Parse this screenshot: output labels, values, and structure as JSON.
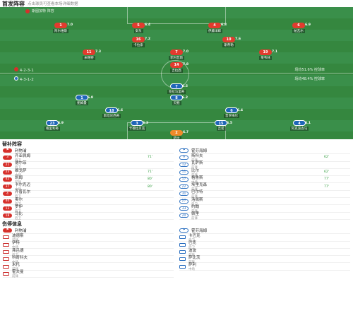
{
  "header": {
    "title": "首发阵容",
    "subtitle": "点击球员可查看本场详细数据"
  },
  "home": {
    "team_label": "斯图加特 阵容",
    "coach": "",
    "formation": "4-2-3-1",
    "color": "#d6302b",
    "stat": "场均51.6% 控球率",
    "players": [
      {
        "num": "1",
        "name": "阿尔维斯",
        "rating": "7.0"
      },
      {
        "num": "5",
        "name": "安东",
        "rating": "6.4"
      },
      {
        "num": "4",
        "name": "伊藤洋辉",
        "rating": "6.8"
      },
      {
        "num": "6",
        "name": "帕瓦尔",
        "rating": "6.9"
      },
      {
        "num": "16",
        "name": "卡拉索",
        "rating": "7.2"
      },
      {
        "num": "10",
        "name": "斯蒂勒",
        "rating": "7.6"
      },
      {
        "num": "11",
        "name": "米略特",
        "rating": "7.3"
      },
      {
        "num": "7",
        "name": "菲利普斯",
        "rating": "7.0"
      },
      {
        "num": "19",
        "name": "莱韦林",
        "rating": "7.1"
      },
      {
        "num": "14",
        "name": "吉拉西",
        "rating": "7.8"
      }
    ]
  },
  "away": {
    "team_label": "霍芬海姆 阵容",
    "formation": "4-3-1-2",
    "color": "#2b6fc0",
    "stat": "场均48.4% 控球率",
    "players": [
      {
        "num": "7",
        "name": "克拉马里奇",
        "rating": "6.5"
      },
      {
        "num": "1",
        "name": "鲍姆曼",
        "rating": "6.8"
      },
      {
        "num": "8",
        "name": "贝鲍",
        "rating": "6.2"
      },
      {
        "num": "18",
        "name": "斯坦尼西奇",
        "rating": "6.6"
      },
      {
        "num": "6",
        "name": "普罗梅尔",
        "rating": "6.4"
      },
      {
        "num": "23",
        "name": "格里利奇",
        "rating": "6.9"
      },
      {
        "num": "3",
        "name": "卡德拉贝克",
        "rating": "6.3"
      },
      {
        "num": "15",
        "name": "吉诺",
        "rating": "6.5"
      },
      {
        "num": "4",
        "name": "阿克波古马",
        "rating": "6.1"
      },
      {
        "num": "2",
        "name": "萨拉",
        "rating": "6.7"
      }
    ]
  },
  "subs": {
    "title": "替补阵容",
    "home_coach": "利物浦",
    "away_coach": "霍芬海姆",
    "home": [
      {
        "num": "3",
        "name": "齐亚佩姆",
        "pos": "后卫",
        "score": "",
        "time": "71'"
      },
      {
        "num": "21",
        "name": "德尔菲",
        "pos": "后卫",
        "score": "",
        "time": ""
      },
      {
        "num": "23",
        "name": "维戈萨",
        "pos": "中场",
        "score": "",
        "time": "71'"
      },
      {
        "num": "42",
        "name": "凯姆",
        "pos": "前锋",
        "score": "",
        "time": "80'"
      },
      {
        "num": "37",
        "name": "卡尔克迈",
        "pos": "中场",
        "score": "",
        "time": "80'"
      },
      {
        "num": "4",
        "name": "齐普瓦尔",
        "pos": "后卫",
        "score": "",
        "time": ""
      },
      {
        "num": "40",
        "name": "奥尔",
        "pos": "后卫",
        "score": "",
        "time": ""
      },
      {
        "num": "13",
        "name": "罗伊",
        "pos": "后卫",
        "score": "",
        "time": ""
      },
      {
        "num": "18",
        "name": "马比",
        "pos": "后卫",
        "score": "",
        "time": ""
      }
    ],
    "away": [
      {
        "num": "9",
        "name": "斯科夫",
        "pos": "前锋",
        "score": "",
        "time": "62'"
      },
      {
        "num": "12",
        "name": "瓦萨斯",
        "pos": "前锋",
        "score": "",
        "time": ""
      },
      {
        "num": "11",
        "name": "比尔",
        "pos": "前锋",
        "score": "",
        "time": "62'"
      },
      {
        "num": "17",
        "name": "格鲁斯",
        "pos": "中场",
        "score": "",
        "time": "77'"
      },
      {
        "num": "22",
        "name": "埃里克森",
        "pos": "前锋",
        "score": "",
        "time": "77'"
      },
      {
        "num": "31",
        "name": "巴尔特",
        "pos": "前锋",
        "score": "",
        "time": ""
      },
      {
        "num": "27",
        "name": "洛佩斯",
        "pos": "后卫",
        "score": "",
        "time": ""
      },
      {
        "num": "33",
        "name": "约翰",
        "pos": "前锋",
        "score": "",
        "time": ""
      },
      {
        "num": "20",
        "name": "佩里",
        "pos": "前锋",
        "score": "",
        "time": ""
      }
    ]
  },
  "injuries": {
    "title": "伤停信息",
    "home_coach": "利物浦",
    "away_coach": "霍芬海姆",
    "home": [
      {
        "name": "迪德斯",
        "pos": "前锋"
      },
      {
        "name": "伊特",
        "pos": "中场"
      },
      {
        "name": "弗吕德",
        "pos": "后卫"
      },
      {
        "name": "科奇科夫",
        "pos": "中场"
      },
      {
        "name": "米托",
        "pos": "前锋"
      },
      {
        "name": "霍夫曼",
        "pos": "前锋"
      }
    ],
    "away": [
      {
        "name": "卡巴克",
        "pos": "后卫"
      },
      {
        "name": "巴克",
        "pos": "后卫"
      },
      {
        "name": "迪波",
        "pos": "前锋"
      },
      {
        "name": "萨比茨",
        "pos": "前锋"
      },
      {
        "name": "萨利",
        "pos": "中场"
      }
    ]
  }
}
